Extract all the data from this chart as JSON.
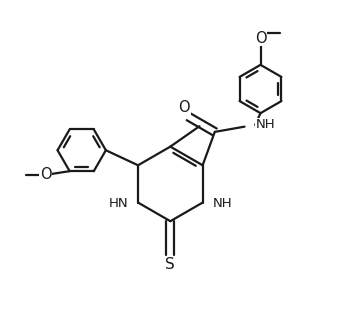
{
  "bg_color": "#ffffff",
  "line_color": "#1a1a1a",
  "bond_lw": 1.6,
  "figsize": [
    3.62,
    3.11
  ],
  "dpi": 100,
  "xlim": [
    0,
    10
  ],
  "ylim": [
    0,
    8.6
  ]
}
